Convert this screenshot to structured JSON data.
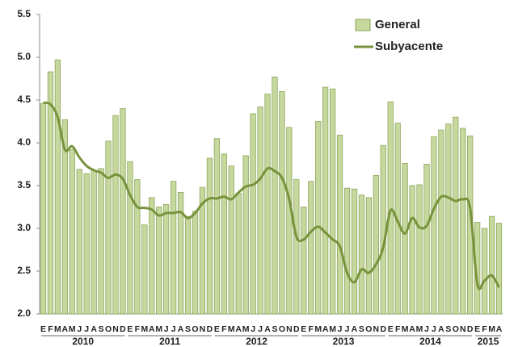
{
  "chart_data": {
    "type": "bar_line",
    "categories": [
      "E",
      "F",
      "M",
      "A",
      "M",
      "J",
      "J",
      "A",
      "S",
      "O",
      "N",
      "D",
      "E",
      "F",
      "M",
      "A",
      "M",
      "J",
      "J",
      "A",
      "S",
      "O",
      "N",
      "D",
      "E",
      "F",
      "M",
      "A",
      "M",
      "J",
      "J",
      "A",
      "S",
      "O",
      "N",
      "D",
      "E",
      "F",
      "M",
      "A",
      "M",
      "J",
      "J",
      "A",
      "S",
      "O",
      "N",
      "D",
      "E",
      "F",
      "M",
      "A",
      "M",
      "J",
      "J",
      "A",
      "S",
      "O",
      "N",
      "D",
      "E",
      "F",
      "M",
      "A"
    ],
    "year_groups": [
      "2010",
      "2011",
      "2012",
      "2013",
      "2014",
      "2015"
    ],
    "series": [
      {
        "name": "General",
        "type": "bar",
        "color": "#c6d89d",
        "values": [
          4.46,
          4.83,
          4.97,
          4.27,
          3.92,
          3.69,
          3.64,
          3.68,
          3.7,
          4.02,
          4.32,
          4.4,
          3.78,
          3.57,
          3.04,
          3.36,
          3.25,
          3.28,
          3.55,
          3.42,
          3.14,
          3.2,
          3.48,
          3.82,
          4.05,
          3.87,
          3.73,
          3.41,
          3.85,
          4.34,
          4.42,
          4.57,
          4.77,
          4.6,
          4.18,
          3.57,
          3.25,
          3.55,
          4.25,
          4.65,
          4.63,
          4.09,
          3.47,
          3.46,
          3.39,
          3.36,
          3.62,
          3.97,
          4.48,
          4.23,
          3.76,
          3.5,
          3.51,
          3.75,
          4.07,
          4.15,
          4.22,
          4.3,
          4.17,
          4.08,
          3.07,
          3.0,
          3.14,
          3.06
        ]
      },
      {
        "name": "Subyacente",
        "type": "line",
        "color": "#77933c",
        "values": [
          4.47,
          4.45,
          4.3,
          3.92,
          3.96,
          3.83,
          3.73,
          3.68,
          3.65,
          3.59,
          3.63,
          3.58,
          3.39,
          3.25,
          3.24,
          3.22,
          3.15,
          3.18,
          3.18,
          3.19,
          3.12,
          3.18,
          3.29,
          3.35,
          3.35,
          3.37,
          3.34,
          3.42,
          3.49,
          3.51,
          3.58,
          3.7,
          3.67,
          3.59,
          3.34,
          2.9,
          2.87,
          2.96,
          3.02,
          2.95,
          2.87,
          2.79,
          2.48,
          2.37,
          2.52,
          2.48,
          2.58,
          2.78,
          3.21,
          3.08,
          2.94,
          3.12,
          3.01,
          3.03,
          3.23,
          3.37,
          3.36,
          3.32,
          3.34,
          3.24,
          2.35,
          2.39,
          2.45,
          2.31
        ]
      }
    ],
    "ylim": [
      2.0,
      5.5
    ],
    "yticks": [
      {
        "value": 2.0,
        "label": "2.0"
      },
      {
        "value": 2.5,
        "label": "2.5"
      },
      {
        "value": 3.0,
        "label": "3.0"
      },
      {
        "value": 3.5,
        "label": "3.5"
      },
      {
        "value": 4.0,
        "label": "4.0"
      },
      {
        "value": 4.5,
        "label": "4.5"
      },
      {
        "value": 5.0,
        "label": "5.0"
      },
      {
        "value": 5.5,
        "label": "5.5"
      }
    ],
    "legend": "top-right"
  }
}
